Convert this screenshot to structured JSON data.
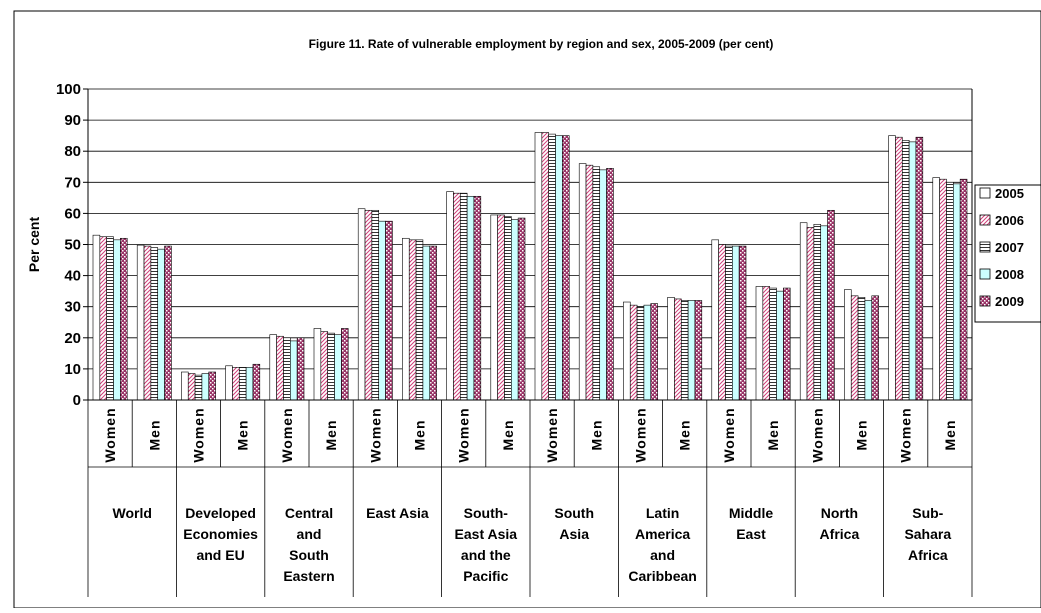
{
  "chart_data": {
    "type": "bar",
    "title": "Figure 11. Rate of vulnerable employment by region and sex, 2005-2009 (per cent)",
    "ylabel": "Per cent",
    "ylim": [
      0,
      100
    ],
    "yticks": [
      0,
      10,
      20,
      30,
      40,
      50,
      60,
      70,
      80,
      90,
      100
    ],
    "grid": true,
    "legend_position": "right",
    "groups": [
      {
        "label": "World",
        "subcategories": [
          "Women",
          "Men"
        ]
      },
      {
        "label": "Developed Economies and EU",
        "subcategories": [
          "Women",
          "Men"
        ]
      },
      {
        "label": "Central and South Eastern",
        "subcategories": [
          "Women",
          "Men"
        ]
      },
      {
        "label": "East Asia",
        "subcategories": [
          "Women",
          "Men"
        ]
      },
      {
        "label": "South-East Asia and the Pacific",
        "subcategories": [
          "Women",
          "Men"
        ]
      },
      {
        "label": "South Asia",
        "subcategories": [
          "Women",
          "Men"
        ]
      },
      {
        "label": "Latin America and Caribbean",
        "subcategories": [
          "Women",
          "Men"
        ]
      },
      {
        "label": "Middle East",
        "subcategories": [
          "Women",
          "Men"
        ]
      },
      {
        "label": "North Africa",
        "subcategories": [
          "Women",
          "Men"
        ]
      },
      {
        "label": "Sub-Sahara Africa",
        "subcategories": [
          "Women",
          "Men"
        ]
      }
    ],
    "group_label_lines": [
      [
        "World"
      ],
      [
        "Developed",
        "Economies",
        "and EU"
      ],
      [
        "Central",
        "and",
        "South",
        "Eastern"
      ],
      [
        "East Asia"
      ],
      [
        "South-",
        "East Asia",
        "and the",
        "Pacific"
      ],
      [
        "South",
        "Asia"
      ],
      [
        "Latin",
        "America",
        "and",
        "Caribbean"
      ],
      [
        "Middle",
        "East"
      ],
      [
        "North",
        "Africa"
      ],
      [
        "Sub-",
        "Sahara",
        "Africa"
      ]
    ],
    "series": [
      {
        "name": "2005",
        "color": "#ffffff",
        "pattern": "none",
        "values": [
          53,
          49.8,
          9,
          11,
          21,
          23,
          61.5,
          52,
          67,
          59.5,
          86,
          76,
          31.5,
          33,
          51.5,
          36.5,
          57,
          35.5,
          85,
          71.5
        ]
      },
      {
        "name": "2006",
        "color": "#f2c6d4",
        "pattern": "diagonal",
        "values": [
          52.5,
          49.5,
          8.5,
          10.5,
          20.5,
          22,
          61,
          51.5,
          66.5,
          59.5,
          86,
          75.5,
          30.5,
          32.5,
          50,
          36.5,
          55.5,
          33.5,
          84.5,
          71
        ]
      },
      {
        "name": "2007",
        "color": "#ffffff",
        "pattern": "horizontal",
        "values": [
          52.5,
          49,
          8,
          10.5,
          20,
          21.5,
          61,
          51.5,
          66.5,
          59,
          85.5,
          75,
          30,
          32,
          49.5,
          36,
          56.5,
          33,
          83.5,
          70
        ]
      },
      {
        "name": "2008",
        "color": "#ccffff",
        "pattern": "none",
        "values": [
          51.5,
          48.5,
          8.5,
          10.5,
          19,
          21,
          57.5,
          49.5,
          65.5,
          58,
          85,
          74,
          30.5,
          32,
          49.5,
          35,
          56,
          32,
          83,
          69.5
        ]
      },
      {
        "name": "2009",
        "color": "#993366",
        "pattern": "dots",
        "values": [
          52,
          49.5,
          9,
          11.5,
          20,
          23,
          57.5,
          49.5,
          65.5,
          58.5,
          85,
          74.5,
          31,
          32,
          49.5,
          36,
          61,
          33.5,
          84.5,
          71
        ]
      }
    ]
  }
}
